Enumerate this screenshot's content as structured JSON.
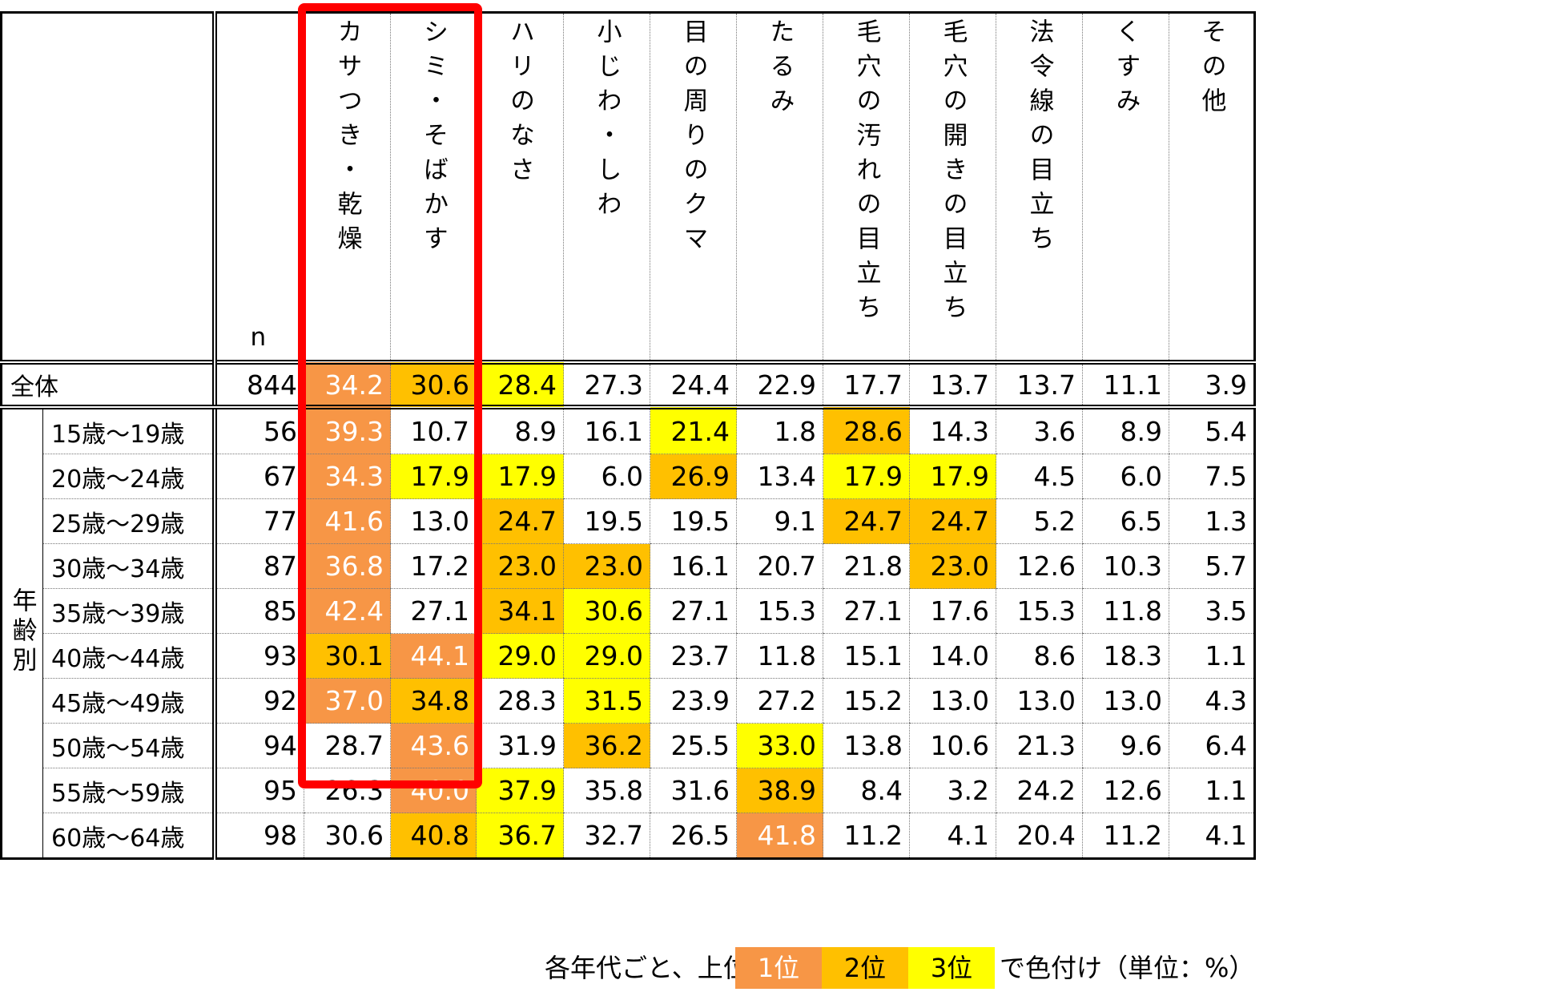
{
  "chart_data": {
    "type": "table",
    "n_header": "n",
    "columns": [
      "カサつき・乾燥",
      "シミ・そばかす",
      "ハリのなさ",
      "小じわ・しわ",
      "目の周りのクマ",
      "たるみ",
      "毛穴の汚れの目立ち",
      "毛穴の開きの目立ち",
      "法令線の目立ち",
      "くすみ",
      "その他"
    ],
    "group_label": "年齢別",
    "total": {
      "label": "全体",
      "n": "844",
      "values": [
        "34.2",
        "30.6",
        "28.4",
        "27.3",
        "24.4",
        "22.9",
        "17.7",
        "13.7",
        "13.7",
        "11.1",
        "3.9"
      ],
      "ranks": [
        1,
        2,
        3,
        0,
        0,
        0,
        0,
        0,
        0,
        0,
        0
      ]
    },
    "rows": [
      {
        "label": "15歳～19歳",
        "n": "56",
        "values": [
          "39.3",
          "10.7",
          "8.9",
          "16.1",
          "21.4",
          "1.8",
          "28.6",
          "14.3",
          "3.6",
          "8.9",
          "5.4"
        ],
        "ranks": [
          1,
          0,
          0,
          0,
          3,
          0,
          2,
          0,
          0,
          0,
          0
        ]
      },
      {
        "label": "20歳～24歳",
        "n": "67",
        "values": [
          "34.3",
          "17.9",
          "17.9",
          "6.0",
          "26.9",
          "13.4",
          "17.9",
          "17.9",
          "4.5",
          "6.0",
          "7.5"
        ],
        "ranks": [
          1,
          3,
          3,
          0,
          2,
          0,
          3,
          3,
          0,
          0,
          0
        ]
      },
      {
        "label": "25歳～29歳",
        "n": "77",
        "values": [
          "41.6",
          "13.0",
          "24.7",
          "19.5",
          "19.5",
          "9.1",
          "24.7",
          "24.7",
          "5.2",
          "6.5",
          "1.3"
        ],
        "ranks": [
          1,
          0,
          2,
          0,
          0,
          0,
          2,
          2,
          0,
          0,
          0
        ]
      },
      {
        "label": "30歳～34歳",
        "n": "87",
        "values": [
          "36.8",
          "17.2",
          "23.0",
          "23.0",
          "16.1",
          "20.7",
          "21.8",
          "23.0",
          "12.6",
          "10.3",
          "5.7"
        ],
        "ranks": [
          1,
          0,
          2,
          2,
          0,
          0,
          0,
          2,
          0,
          0,
          0
        ]
      },
      {
        "label": "35歳～39歳",
        "n": "85",
        "values": [
          "42.4",
          "27.1",
          "34.1",
          "30.6",
          "27.1",
          "15.3",
          "27.1",
          "17.6",
          "15.3",
          "11.8",
          "3.5"
        ],
        "ranks": [
          1,
          0,
          2,
          3,
          0,
          0,
          0,
          0,
          0,
          0,
          0
        ]
      },
      {
        "label": "40歳～44歳",
        "n": "93",
        "values": [
          "30.1",
          "44.1",
          "29.0",
          "29.0",
          "23.7",
          "11.8",
          "15.1",
          "14.0",
          "8.6",
          "18.3",
          "1.1"
        ],
        "ranks": [
          2,
          1,
          3,
          3,
          0,
          0,
          0,
          0,
          0,
          0,
          0
        ]
      },
      {
        "label": "45歳～49歳",
        "n": "92",
        "values": [
          "37.0",
          "34.8",
          "28.3",
          "31.5",
          "23.9",
          "27.2",
          "15.2",
          "13.0",
          "13.0",
          "13.0",
          "4.3"
        ],
        "ranks": [
          1,
          2,
          0,
          3,
          0,
          0,
          0,
          0,
          0,
          0,
          0
        ]
      },
      {
        "label": "50歳～54歳",
        "n": "94",
        "values": [
          "28.7",
          "43.6",
          "31.9",
          "36.2",
          "25.5",
          "33.0",
          "13.8",
          "10.6",
          "21.3",
          "9.6",
          "6.4"
        ],
        "ranks": [
          0,
          1,
          0,
          2,
          0,
          3,
          0,
          0,
          0,
          0,
          0
        ]
      },
      {
        "label": "55歳～59歳",
        "n": "95",
        "values": [
          "26.3",
          "40.0",
          "37.9",
          "35.8",
          "31.6",
          "38.9",
          "8.4",
          "3.2",
          "24.2",
          "12.6",
          "1.1"
        ],
        "ranks": [
          0,
          1,
          3,
          0,
          0,
          2,
          0,
          0,
          0,
          0,
          0
        ]
      },
      {
        "label": "60歳～64歳",
        "n": "98",
        "values": [
          "30.6",
          "40.8",
          "36.7",
          "32.7",
          "26.5",
          "41.8",
          "11.2",
          "4.1",
          "20.4",
          "11.2",
          "4.1"
        ],
        "ranks": [
          0,
          2,
          3,
          0,
          0,
          1,
          0,
          0,
          0,
          0,
          0
        ]
      }
    ],
    "rank_colors": {
      "1": "#F79646",
      "2": "#FFC000",
      "3": "#FFFF00"
    },
    "highlight_box_color": "#FF0000"
  },
  "legend": {
    "prefix": "各年代ごと、上位",
    "rank1": "1位",
    "rank2": "2位",
    "rank3": "3位",
    "suffix": "で色付け（単位：%）"
  }
}
